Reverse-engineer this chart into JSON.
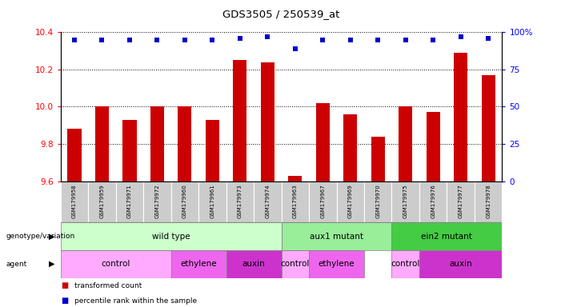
{
  "title": "GDS3505 / 250539_at",
  "samples": [
    "GSM179958",
    "GSM179959",
    "GSM179971",
    "GSM179972",
    "GSM179960",
    "GSM179961",
    "GSM179973",
    "GSM179974",
    "GSM179963",
    "GSM179967",
    "GSM179969",
    "GSM179970",
    "GSM179975",
    "GSM179976",
    "GSM179977",
    "GSM179978"
  ],
  "red_bars": [
    9.88,
    10.0,
    9.93,
    10.0,
    10.0,
    9.93,
    10.25,
    10.24,
    9.63,
    10.02,
    9.96,
    9.84,
    10.0,
    9.97,
    10.29,
    10.17
  ],
  "blue_dots_pct": [
    95,
    95,
    95,
    95,
    95,
    95,
    96,
    97,
    89,
    95,
    95,
    95,
    95,
    95,
    97,
    96
  ],
  "ylim_left": [
    9.6,
    10.4
  ],
  "ylim_right": [
    0,
    100
  ],
  "yticks_left": [
    9.6,
    9.8,
    10.0,
    10.2,
    10.4
  ],
  "yticks_right": [
    0,
    25,
    50,
    75,
    100
  ],
  "genotype_groups": [
    {
      "label": "wild type",
      "start": 0,
      "end": 8,
      "color": "#ccffcc"
    },
    {
      "label": "aux1 mutant",
      "start": 8,
      "end": 12,
      "color": "#99ee99"
    },
    {
      "label": "ein2 mutant",
      "start": 12,
      "end": 16,
      "color": "#44cc44"
    }
  ],
  "agent_groups": [
    {
      "label": "control",
      "start": 0,
      "end": 4,
      "color": "#ffaaff"
    },
    {
      "label": "ethylene",
      "start": 4,
      "end": 6,
      "color": "#ee66ee"
    },
    {
      "label": "auxin",
      "start": 6,
      "end": 8,
      "color": "#cc33cc"
    },
    {
      "label": "control",
      "start": 8,
      "end": 9,
      "color": "#ffaaff"
    },
    {
      "label": "ethylene",
      "start": 9,
      "end": 11,
      "color": "#ee66ee"
    },
    {
      "label": "control",
      "start": 12,
      "end": 13,
      "color": "#ffaaff"
    },
    {
      "label": "auxin",
      "start": 13,
      "end": 16,
      "color": "#cc33cc"
    }
  ],
  "bar_color": "#cc0000",
  "dot_color": "#0000cc",
  "sample_row_color": "#cccccc",
  "legend_items": [
    {
      "label": "transformed count",
      "color": "#cc0000"
    },
    {
      "label": "percentile rank within the sample",
      "color": "#0000cc"
    }
  ]
}
